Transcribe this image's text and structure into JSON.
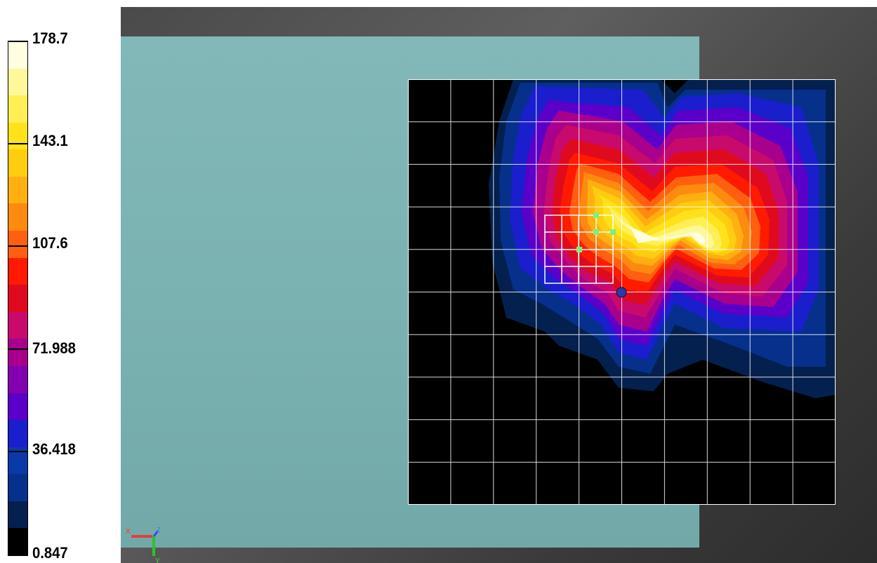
{
  "legend": {
    "ticks": [
      "178.7",
      "143.1",
      "107.6",
      "71.988",
      "36.418",
      "0.847"
    ],
    "bands": [
      "#fffee0",
      "#fff89a",
      "#ffef55",
      "#ffe31a",
      "#ffcd10",
      "#ffb010",
      "#ff8a10",
      "#ff6010",
      "#ff1a00",
      "#e00a1e",
      "#c80a6c",
      "#a8008c",
      "#8200b0",
      "#5a00c8",
      "#1a1ecc",
      "#0a3aa8",
      "#06308c",
      "#04204e",
      "#000000"
    ],
    "colors": {
      "min": "#000000",
      "low": "#0a3aa8",
      "mid": "#a8008c",
      "high": "#ff1a00",
      "max": "#fffee0"
    }
  },
  "viewport": {
    "axis_labels": {
      "x": "X",
      "y": "Y",
      "z": "Z"
    },
    "colors": {
      "plane": "#7db4b3",
      "grid": "#ffffff",
      "background": "#4a4a4a"
    }
  },
  "heatmap": {
    "grid": {
      "cols": 10,
      "rows": 10
    },
    "markers": [
      "green-square-marker",
      "green-square-marker",
      "green-square-marker",
      "green-square-marker",
      "blue-sphere-marker"
    ],
    "selection_box": "white-rectangle"
  }
}
